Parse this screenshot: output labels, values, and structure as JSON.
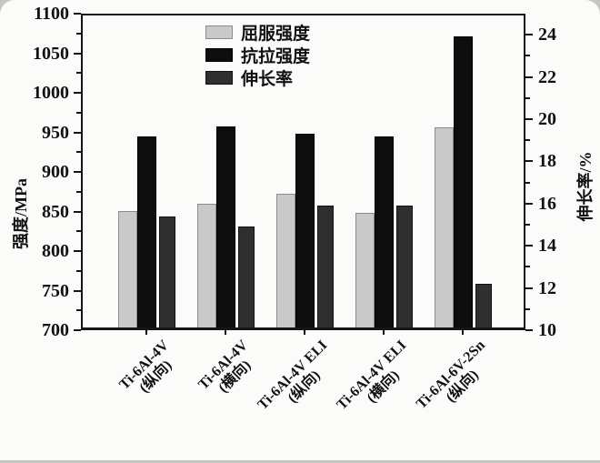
{
  "chart_data": {
    "type": "bar",
    "title": "",
    "categories": [
      {
        "name": "Ti-6Al-4V",
        "orientation": "(纵向)"
      },
      {
        "name": "Ti-6Al-4V",
        "orientation": "(横向)"
      },
      {
        "name": "Ti-6Al-4V ELI",
        "orientation": "(纵向)"
      },
      {
        "name": "Ti-6Al-4V ELI",
        "orientation": "(横向)"
      },
      {
        "name": "Ti-6Al-6V-2Sn",
        "orientation": "(纵向)"
      }
    ],
    "series": [
      {
        "name": "屈服强度",
        "axis": "left",
        "unit": "MPa",
        "color": "#c9c9c9",
        "border": "#8c8c8c",
        "values": [
          851,
          860,
          872,
          848,
          956
        ]
      },
      {
        "name": "抗拉强度",
        "axis": "left",
        "unit": "MPa",
        "color": "#0d0d0d",
        "border": "#000000",
        "values": [
          945,
          958,
          948,
          945,
          1071
        ]
      },
      {
        "name": "伸长率",
        "axis": "right",
        "unit": "%",
        "color": "#2f2f2f",
        "border": "#111111",
        "values": [
          15.4,
          14.9,
          15.9,
          15.9,
          12.2
        ]
      }
    ],
    "left_axis": {
      "label": "强度/MPa",
      "min": 700,
      "max": 1100,
      "major_tick_step": 50,
      "minor_tick_step": 25,
      "tick_labels": [
        1100,
        1050,
        1000,
        950,
        900,
        850,
        800,
        750,
        700
      ]
    },
    "right_axis": {
      "label": "伸长率/%",
      "min": 10,
      "max": 25,
      "major_tick_step": 2,
      "minor_tick_step": 1,
      "tick_labels": [
        24,
        22,
        20,
        18,
        16,
        14,
        12,
        10
      ]
    },
    "legend_position": "upper-center",
    "grid": false,
    "plot_background": "#fbfbf9",
    "frame_color": "#151515"
  }
}
